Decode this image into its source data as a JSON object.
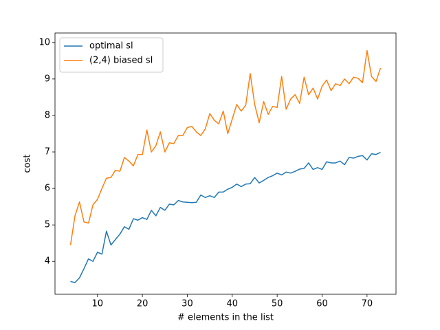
{
  "chart_data": {
    "type": "line",
    "xlabel": "# elements in the list",
    "ylabel": "cost",
    "x": [
      4,
      5,
      6,
      7,
      8,
      9,
      10,
      11,
      12,
      13,
      14,
      15,
      16,
      17,
      18,
      19,
      20,
      21,
      22,
      23,
      24,
      25,
      26,
      27,
      28,
      29,
      30,
      31,
      32,
      33,
      34,
      35,
      36,
      37,
      38,
      39,
      40,
      41,
      42,
      43,
      44,
      45,
      46,
      47,
      48,
      49,
      50,
      51,
      52,
      53,
      54,
      55,
      56,
      57,
      58,
      59,
      60,
      61,
      62,
      63,
      64,
      65,
      66,
      67,
      68,
      69,
      70,
      71,
      72,
      73
    ],
    "series": [
      {
        "name": "optimal sl",
        "color": "#1f77b4",
        "values": [
          3.45,
          3.42,
          3.55,
          3.8,
          4.07,
          4.0,
          4.25,
          4.2,
          4.83,
          4.45,
          4.6,
          4.75,
          4.95,
          4.88,
          5.17,
          5.13,
          5.2,
          5.15,
          5.4,
          5.25,
          5.48,
          5.4,
          5.57,
          5.55,
          5.67,
          5.63,
          5.62,
          5.61,
          5.62,
          5.82,
          5.75,
          5.8,
          5.75,
          5.9,
          5.9,
          5.98,
          6.03,
          6.12,
          6.05,
          6.12,
          6.13,
          6.3,
          6.15,
          6.22,
          6.3,
          6.35,
          6.42,
          6.37,
          6.45,
          6.42,
          6.47,
          6.53,
          6.55,
          6.7,
          6.52,
          6.57,
          6.52,
          6.73,
          6.7,
          6.7,
          6.75,
          6.65,
          6.85,
          6.83,
          6.88,
          6.9,
          6.78,
          6.95,
          6.93,
          6.99
        ]
      },
      {
        "name": "(2,4) biased sl",
        "color": "#ff7f0e",
        "values": [
          4.45,
          5.25,
          5.63,
          5.08,
          5.05,
          5.55,
          5.7,
          6.0,
          6.28,
          6.3,
          6.5,
          6.47,
          6.85,
          6.75,
          6.62,
          6.93,
          6.93,
          7.6,
          7.0,
          7.17,
          7.55,
          7.0,
          7.25,
          7.23,
          7.45,
          7.45,
          7.67,
          7.7,
          7.55,
          7.45,
          7.63,
          8.05,
          7.87,
          7.77,
          8.12,
          7.5,
          7.9,
          8.3,
          8.12,
          8.28,
          9.15,
          8.3,
          7.8,
          8.38,
          8.03,
          8.25,
          8.22,
          9.07,
          8.17,
          8.45,
          8.57,
          8.33,
          9.05,
          8.57,
          8.75,
          8.45,
          8.8,
          8.97,
          8.68,
          8.87,
          8.82,
          9.0,
          8.87,
          9.05,
          9.02,
          8.9,
          9.78,
          9.07,
          8.93,
          9.3
        ]
      }
    ],
    "xlim": [
      0.55,
      76.45
    ],
    "ylim": [
      3.1,
      10.26
    ],
    "xticks": [
      10,
      20,
      30,
      40,
      50,
      60,
      70
    ],
    "yticks": [
      4,
      5,
      6,
      7,
      8,
      9,
      10
    ],
    "legend": "upper left"
  }
}
